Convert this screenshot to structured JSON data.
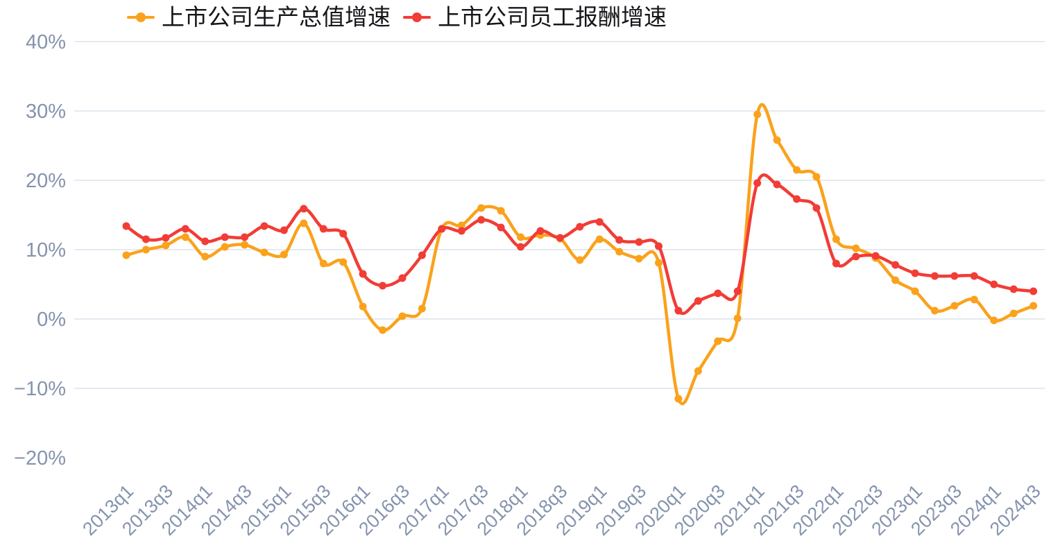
{
  "chart_data": {
    "type": "line",
    "title": "",
    "xlabel": "",
    "ylabel": "",
    "ylim": [
      -20,
      40
    ],
    "grid": true,
    "legend_position": "top",
    "y_ticks": [
      {
        "label": "40%",
        "value": 40
      },
      {
        "label": "30%",
        "value": 30
      },
      {
        "label": "20%",
        "value": 20
      },
      {
        "label": "10%",
        "value": 10
      },
      {
        "label": "0%",
        "value": 0
      },
      {
        "label": "−10%",
        "value": -10
      },
      {
        "label": "−20%",
        "value": -20
      }
    ],
    "x": [
      "2013q1",
      "2013q2",
      "2013q3",
      "2013q4",
      "2014q1",
      "2014q2",
      "2014q3",
      "2014q4",
      "2015q1",
      "2015q2",
      "2015q3",
      "2015q4",
      "2016q1",
      "2016q2",
      "2016q3",
      "2016q4",
      "2017q1",
      "2017q2",
      "2017q3",
      "2017q4",
      "2018q1",
      "2018q2",
      "2018q3",
      "2018q4",
      "2019q1",
      "2019q2",
      "2019q3",
      "2019q4",
      "2020q1",
      "2020q2",
      "2020q3",
      "2020q4",
      "2021q1",
      "2021q2",
      "2021q3",
      "2021q4",
      "2022q1",
      "2022q2",
      "2022q3",
      "2022q4",
      "2023q1",
      "2023q2",
      "2023q3",
      "2023q4",
      "2024q1",
      "2024q2",
      "2024q3"
    ],
    "x_tick_labels": [
      "2013q1",
      "2013q3",
      "2014q1",
      "2014q3",
      "2015q1",
      "2015q3",
      "2016q1",
      "2016q3",
      "2017q1",
      "2017q3",
      "2018q1",
      "2018q3",
      "2019q1",
      "2019q3",
      "2020q1",
      "2020q3",
      "2021q1",
      "2021q3",
      "2022q1",
      "2022q3",
      "2023q1",
      "2023q3",
      "2024q1",
      "2024q3"
    ],
    "x_tick_step": 2,
    "series": [
      {
        "name": "上市公司生产总值增速",
        "color": "#FAA21B",
        "values": [
          9.2,
          10.0,
          10.6,
          11.8,
          9.0,
          10.4,
          10.7,
          9.6,
          9.3,
          13.8,
          8.0,
          8.2,
          1.8,
          -1.6,
          0.4,
          1.5,
          13.0,
          13.5,
          16.0,
          15.6,
          11.8,
          12.1,
          11.6,
          8.5,
          11.5,
          9.7,
          8.7,
          8.1,
          -11.5,
          -7.5,
          -3.2,
          0.1,
          29.5,
          25.8,
          21.5,
          20.5,
          11.5,
          10.2,
          8.8,
          5.6,
          4.0,
          1.2,
          1.9,
          2.8,
          -0.2,
          0.8,
          1.9
        ]
      },
      {
        "name": "上市公司员工报酬增速",
        "color": "#F23C36",
        "values": [
          13.4,
          11.5,
          11.7,
          13.0,
          11.2,
          11.8,
          11.8,
          13.4,
          12.8,
          15.9,
          13.0,
          12.3,
          6.5,
          4.8,
          5.9,
          9.2,
          13.0,
          12.7,
          14.3,
          13.2,
          10.4,
          12.7,
          11.7,
          13.3,
          14.0,
          11.4,
          11.1,
          10.5,
          1.2,
          2.6,
          3.7,
          4.0,
          19.6,
          19.4,
          17.3,
          16.0,
          8.0,
          9.0,
          9.1,
          7.8,
          6.6,
          6.2,
          6.2,
          6.2,
          5.0,
          4.3,
          4.0
        ]
      }
    ]
  },
  "style": {
    "grid_color": "#E4EAF2",
    "axis_label_color": "#8593AD",
    "legend_text_color": "#15161a",
    "background": "#ffffff"
  }
}
